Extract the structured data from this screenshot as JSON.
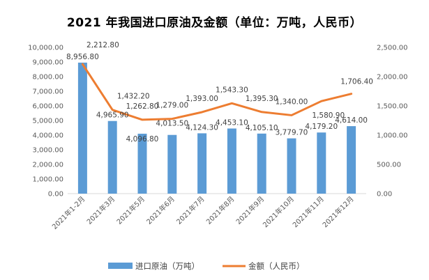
{
  "chart_data": {
    "type": "bar+line",
    "title": "2021 年我国进口原油及金额（单位：万吨，人民币）",
    "categories": [
      "2021年1-2月",
      "2021年3月",
      "2021年5月",
      "2021年6月",
      "2021年7月",
      "2021年8月",
      "2021年9月",
      "2021年10月",
      "2021年11月",
      "2021年12月"
    ],
    "series": [
      {
        "name": "进口原油（万吨）",
        "type": "bar",
        "axis": "left",
        "color": "#5b9bd5",
        "values": [
          8956.8,
          4965.9,
          4096.8,
          4013.5,
          4124.3,
          4453.1,
          4105.1,
          3779.7,
          4179.2,
          4614.0
        ],
        "labels": [
          "8,956.80",
          "4,965.90",
          "4,096.80",
          "4,013.50",
          "4,124.30",
          "4,453.10",
          "4,105.10",
          "3,779.70",
          "4,179.20",
          "4,614.00"
        ]
      },
      {
        "name": "金额（人民币）",
        "type": "line",
        "axis": "right",
        "color": "#ed7d31",
        "values": [
          2212.8,
          1432.2,
          1262.8,
          1279.0,
          1393.0,
          1543.3,
          1395.3,
          1340.0,
          1580.9,
          1706.4
        ],
        "labels": [
          "2,212.80",
          "1,432.20",
          "1,262.80",
          "1,279.00",
          "1,393.00",
          "1,543.30",
          "1,395.30",
          "1,340.00",
          "1,580.90",
          "1,706.40"
        ]
      }
    ],
    "y_left": {
      "min": 0,
      "max": 10000,
      "ticks": [
        "0.00",
        "1,000.00",
        "2,000.00",
        "3,000.00",
        "4,000.00",
        "5,000.00",
        "6,000.00",
        "7,000.00",
        "8,000.00",
        "9,000.00",
        "10,000.00"
      ]
    },
    "y_right": {
      "min": 0,
      "max": 2500,
      "ticks": [
        "0.00",
        "500.00",
        "1,000.00",
        "1,500.00",
        "2,000.00",
        "2,500.00"
      ]
    },
    "grid": false,
    "legend": "bottom"
  }
}
